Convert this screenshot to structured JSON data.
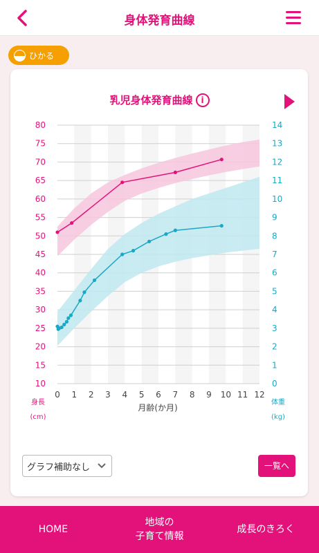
{
  "header": {
    "title": "身体発育曲線",
    "back_icon": "chevron-left-icon",
    "menu_icon": "hamburger-menu-icon"
  },
  "child": {
    "name": "ひかる",
    "icon": "child-face-icon",
    "color": "#f5a000"
  },
  "colors": {
    "accent": "#e3127a",
    "height_band": "#f7c6de",
    "weight_band": "#c0e7f0",
    "weight_line": "#1aa8c4"
  },
  "chart_data": {
    "type": "line",
    "title": "乳児身体発育曲線",
    "info_icon": "info-icon",
    "next_icon": "triangle-right-icon",
    "xlabel": "月齢(か月)",
    "xlim": [
      0,
      12
    ],
    "x_ticks": [
      "0",
      "1",
      "2",
      "3",
      "4",
      "5",
      "6",
      "7",
      "8",
      "9",
      "10",
      "11",
      "12"
    ],
    "y_left": {
      "label_line1": "身長",
      "label_line2": "(cm)",
      "lim": [
        10,
        80
      ],
      "ticks": [
        "10",
        "15",
        "20",
        "25",
        "30",
        "35",
        "40",
        "45",
        "50",
        "55",
        "60",
        "65",
        "70",
        "75",
        "80"
      ]
    },
    "y_right": {
      "label_line1": "体重",
      "label_line2": "(kg)",
      "lim": [
        0,
        14
      ],
      "ticks": [
        "0",
        "1",
        "2",
        "3",
        "4",
        "5",
        "6",
        "7",
        "8",
        "9",
        "10",
        "11",
        "12",
        "13",
        "14"
      ]
    },
    "grid": true,
    "series": [
      {
        "axis": "left",
        "color": "#e3127a",
        "points": [
          [
            0,
            51
          ],
          [
            0.85,
            53.5
          ],
          [
            3.85,
            64.5
          ],
          [
            7,
            67.2
          ],
          [
            9.75,
            70.7
          ]
        ]
      },
      {
        "axis": "right",
        "color": "#1aa8c4",
        "points": [
          [
            0,
            3.1
          ],
          [
            0.05,
            2.95
          ],
          [
            0.1,
            3.0
          ],
          [
            0.25,
            3.05
          ],
          [
            0.4,
            3.2
          ],
          [
            0.55,
            3.35
          ],
          [
            0.65,
            3.55
          ],
          [
            0.8,
            3.7
          ],
          [
            1.35,
            4.5
          ],
          [
            1.6,
            4.95
          ],
          [
            2.2,
            5.6
          ],
          [
            3.85,
            7.0
          ],
          [
            4.5,
            7.2
          ],
          [
            5.45,
            7.7
          ],
          [
            6.45,
            8.1
          ],
          [
            7.0,
            8.3
          ],
          [
            9.75,
            8.55
          ]
        ]
      }
    ],
    "bands": [
      {
        "axis": "left",
        "color": "#f7c6de",
        "lower": [
          [
            0,
            44.5
          ],
          [
            1,
            49
          ],
          [
            2,
            53
          ],
          [
            3,
            56.5
          ],
          [
            4,
            59.5
          ],
          [
            5,
            61.5
          ],
          [
            6,
            63
          ],
          [
            7,
            64.3
          ],
          [
            8,
            65.4
          ],
          [
            9,
            66.4
          ],
          [
            10,
            67.3
          ],
          [
            11,
            68.1
          ],
          [
            12,
            68.8
          ]
        ],
        "upper": [
          [
            0,
            52.5
          ],
          [
            1,
            57.5
          ],
          [
            2,
            61.5
          ],
          [
            3,
            64.5
          ],
          [
            4,
            66.5
          ],
          [
            5,
            68.3
          ],
          [
            6,
            69.8
          ],
          [
            7,
            71.1
          ],
          [
            8,
            72.3
          ],
          [
            9,
            73.4
          ],
          [
            10,
            74.5
          ],
          [
            11,
            75.4
          ],
          [
            12,
            76.1
          ]
        ]
      },
      {
        "axis": "right",
        "color": "#c0e7f0",
        "lower": [
          [
            0,
            2.05
          ],
          [
            1,
            3.0
          ],
          [
            2,
            3.9
          ],
          [
            3,
            4.75
          ],
          [
            4,
            5.5
          ],
          [
            5,
            6.0
          ],
          [
            6,
            6.35
          ],
          [
            7,
            6.6
          ],
          [
            8,
            6.8
          ],
          [
            9,
            6.95
          ],
          [
            10,
            7.1
          ],
          [
            11,
            7.2
          ],
          [
            12,
            7.3
          ]
        ],
        "upper": [
          [
            0,
            3.9
          ],
          [
            1,
            5.05
          ],
          [
            2,
            6.2
          ],
          [
            3,
            7.3
          ],
          [
            4,
            8.1
          ],
          [
            5,
            8.7
          ],
          [
            6,
            9.2
          ],
          [
            7,
            9.6
          ],
          [
            8,
            10.0
          ],
          [
            9,
            10.3
          ],
          [
            10,
            10.6
          ],
          [
            11,
            10.9
          ],
          [
            12,
            11.2
          ]
        ]
      }
    ]
  },
  "controls": {
    "assist_select_value": "グラフ補助なし",
    "list_button_label": "一覧へ"
  },
  "bottom_nav": {
    "home": "HOME",
    "local_info_line1": "地域の",
    "local_info_line2": "子育て情報",
    "growth_record": "成長のきろく"
  }
}
